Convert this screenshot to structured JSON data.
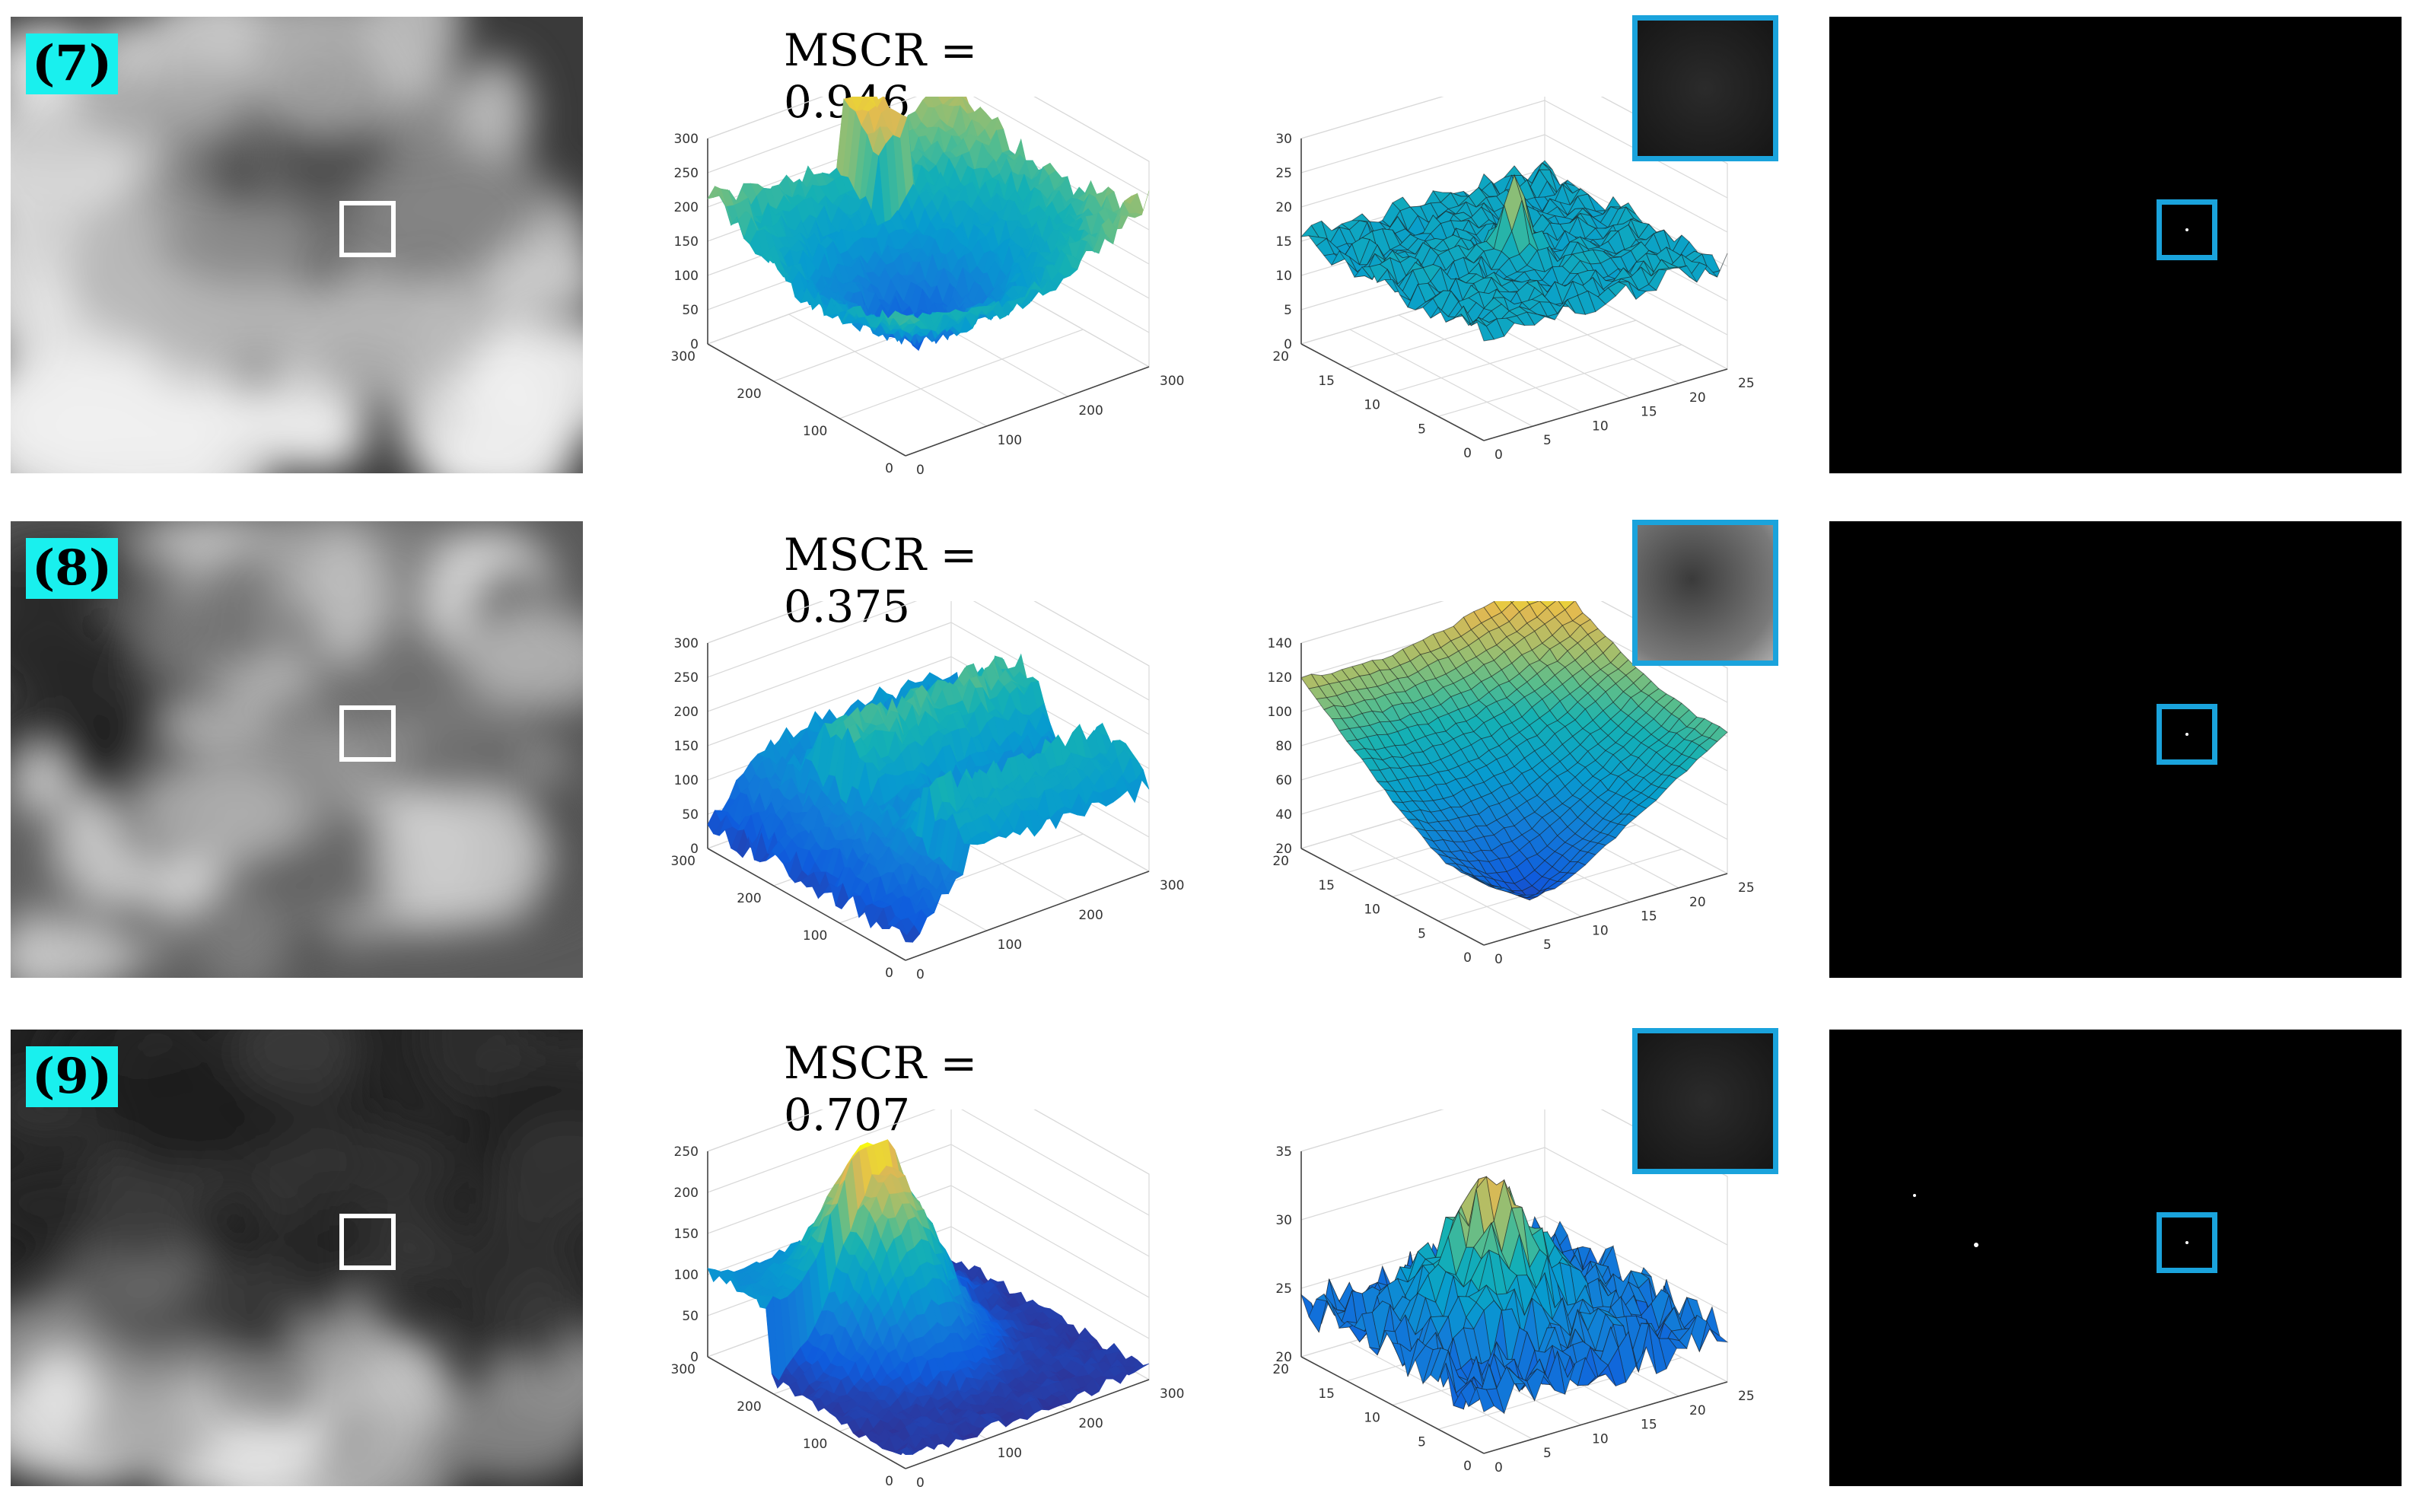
{
  "rows": [
    {
      "index": "(7)",
      "mscr": "MSCR = 0.946",
      "surface": {
        "x_ticks": [
          "0",
          "100",
          "200",
          "300"
        ],
        "y_ticks": [
          "0",
          "100",
          "200",
          "300"
        ],
        "z_ticks": [
          "0",
          "50",
          "100",
          "150",
          "200",
          "250",
          "300"
        ]
      },
      "local": {
        "x_ticks": [
          "0",
          "5",
          "10",
          "15",
          "20",
          "25"
        ],
        "y_ticks": [
          "0",
          "5",
          "10",
          "15",
          "20"
        ],
        "z_ticks": [
          "0",
          "5",
          "10",
          "15",
          "20",
          "25",
          "30"
        ]
      }
    },
    {
      "index": "(8)",
      "mscr": "MSCR = 0.375",
      "surface": {
        "x_ticks": [
          "0",
          "100",
          "200",
          "300"
        ],
        "y_ticks": [
          "0",
          "100",
          "200",
          "300"
        ],
        "z_ticks": [
          "0",
          "50",
          "100",
          "150",
          "200",
          "250",
          "300"
        ]
      },
      "local": {
        "x_ticks": [
          "0",
          "5",
          "10",
          "15",
          "20",
          "25"
        ],
        "y_ticks": [
          "0",
          "5",
          "10",
          "15",
          "20"
        ],
        "z_ticks": [
          "20",
          "40",
          "60",
          "80",
          "100",
          "120",
          "140"
        ]
      }
    },
    {
      "index": "(9)",
      "mscr": "MSCR = 0.707",
      "surface": {
        "x_ticks": [
          "0",
          "100",
          "200",
          "300"
        ],
        "y_ticks": [
          "0",
          "100",
          "200",
          "300"
        ],
        "z_ticks": [
          "0",
          "50",
          "100",
          "150",
          "200",
          "250"
        ]
      },
      "local": {
        "x_ticks": [
          "0",
          "5",
          "10",
          "15",
          "20",
          "25"
        ],
        "y_ticks": [
          "0",
          "5",
          "10",
          "15",
          "20"
        ],
        "z_ticks": [
          "20",
          "25",
          "30",
          "35"
        ]
      }
    }
  ],
  "colors": {
    "index_bg": "#19f0ee",
    "box_blue": "#1aa3dc",
    "box_white": "#ffffff"
  }
}
